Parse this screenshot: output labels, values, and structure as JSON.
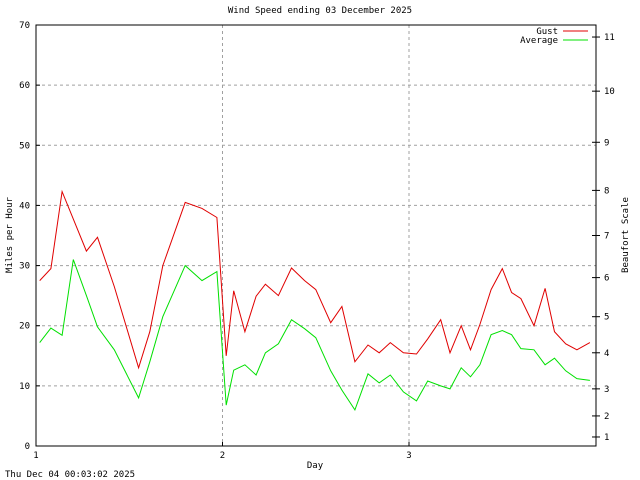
{
  "chart_data": {
    "type": "line",
    "title": "Wind Speed ending 03 December 2025",
    "xlabel": "Day",
    "ylabel": "Miles per Hour",
    "y2label": "Beaufort Scale",
    "xlim": [
      1,
      4
    ],
    "ylim": [
      0,
      70
    ],
    "x_ticks": [
      "1",
      "2",
      "3"
    ],
    "y_ticks": [
      "0",
      "10",
      "20",
      "30",
      "40",
      "50",
      "60",
      "70"
    ],
    "y2_ticks": [
      "1",
      "2",
      "3",
      "4",
      "5",
      "6",
      "7",
      "8",
      "9",
      "10",
      "11"
    ],
    "grid": true,
    "legend_position": "top-right",
    "series": [
      {
        "name": "Gust",
        "color": "#e00000",
        "x": [
          1.02,
          1.08,
          1.14,
          1.27,
          1.33,
          1.42,
          1.55,
          1.61,
          1.68,
          1.8,
          1.89,
          1.97,
          2.02,
          2.06,
          2.12,
          2.18,
          2.23,
          2.3,
          2.37,
          2.44,
          2.5,
          2.58,
          2.64,
          2.71,
          2.78,
          2.84,
          2.9,
          2.97,
          3.04,
          3.1,
          3.17,
          3.22,
          3.28,
          3.33,
          3.38,
          3.44,
          3.5,
          3.55,
          3.6,
          3.67,
          3.73,
          3.78,
          3.84,
          3.9,
          3.97
        ],
        "values": [
          27.5,
          29.5,
          42.3,
          32.4,
          34.7,
          26.5,
          13.0,
          19.0,
          30.0,
          40.5,
          39.5,
          38.0,
          15.0,
          25.8,
          19.0,
          24.9,
          26.9,
          25.0,
          29.6,
          27.5,
          26.0,
          20.5,
          23.2,
          14.0,
          16.8,
          15.5,
          17.2,
          15.5,
          15.3,
          17.8,
          21.0,
          15.5,
          20.0,
          16.0,
          20.2,
          26.0,
          29.5,
          25.5,
          24.5,
          20.0,
          26.2,
          19.0,
          17.0,
          16.0,
          17.2
        ]
      },
      {
        "name": "Average",
        "color": "#00e000",
        "x": [
          1.02,
          1.08,
          1.14,
          1.2,
          1.27,
          1.33,
          1.42,
          1.55,
          1.61,
          1.68,
          1.8,
          1.89,
          1.97,
          2.02,
          2.06,
          2.12,
          2.18,
          2.23,
          2.3,
          2.37,
          2.44,
          2.5,
          2.58,
          2.64,
          2.71,
          2.78,
          2.84,
          2.9,
          2.97,
          3.04,
          3.1,
          3.17,
          3.22,
          3.28,
          3.33,
          3.38,
          3.44,
          3.5,
          3.55,
          3.6,
          3.67,
          3.73,
          3.78,
          3.84,
          3.9,
          3.97
        ],
        "values": [
          17.2,
          19.6,
          18.4,
          31.0,
          25.0,
          19.8,
          16.0,
          8.0,
          14.0,
          21.5,
          30.0,
          27.5,
          29.0,
          6.8,
          12.6,
          13.5,
          11.8,
          15.5,
          17.0,
          21.0,
          19.5,
          18.0,
          12.5,
          9.3,
          6.0,
          12.0,
          10.5,
          11.8,
          9.0,
          7.5,
          10.8,
          10.0,
          9.5,
          13.0,
          11.5,
          13.5,
          18.5,
          19.2,
          18.5,
          16.2,
          16.0,
          13.5,
          14.6,
          12.5,
          11.2,
          10.9
        ]
      }
    ]
  },
  "title": "Wind Speed ending 03 December 2025",
  "xlabel": "Day",
  "ylabel": "Miles per Hour",
  "y2label": "Beaufort Scale",
  "legend": {
    "gust": "Gust",
    "average": "Average"
  },
  "footer": "Thu Dec 04 00:03:02 2025"
}
